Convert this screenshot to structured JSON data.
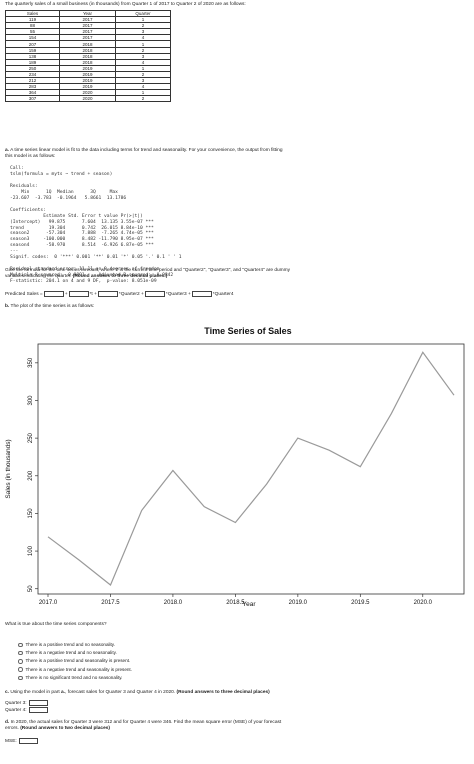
{
  "intro": "The quarterly sales of a small business (in thousands) from Quarter 1 of 2017 to Quarter 2 of 2020 are as follows:",
  "table": {
    "headers": [
      "Sales",
      "Year",
      "Quarter"
    ],
    "rows": [
      [
        "119",
        "2017",
        "1"
      ],
      [
        "88",
        "2017",
        "2"
      ],
      [
        "55",
        "2017",
        "3"
      ],
      [
        "154",
        "2017",
        "4"
      ],
      [
        "207",
        "2018",
        "1"
      ],
      [
        "159",
        "2018",
        "2"
      ],
      [
        "138",
        "2018",
        "3"
      ],
      [
        "189",
        "2018",
        "4"
      ],
      [
        "250",
        "2019",
        "1"
      ],
      [
        "234",
        "2019",
        "2"
      ],
      [
        "212",
        "2019",
        "3"
      ],
      [
        "283",
        "2019",
        "4"
      ],
      [
        "364",
        "2020",
        "1"
      ],
      [
        "307",
        "2020",
        "2"
      ]
    ]
  },
  "part_a": {
    "label": "a.",
    "text_line1": " A time series linear model is fit to the data including terms for trend and seasonality.  For your convenience, the output from fitting",
    "text_line2": "this model is as follows:",
    "r_output": "Call:\ntslm(formula = myts ~ trend + season)\n\nResiduals:\n    Min      1Q  Median      3Q     Max\n-23.607  -3.783  -0.1964   5.8661  13.1786\n\nCoefficients:\n            Estimate Std. Error t value Pr(>|t|)\n(Intercept)   99.875      7.604  13.135 3.55e-07 ***\ntrend         19.304      0.742  26.015 8.84e-10 ***\nseason2      -57.304      7.888  -7.265 4.74e-05 ***\nseason3     -100.000      8.482 -11.790 8.95e-07 ***\nseason4      -58.970      8.514  -6.926 6.87e-05 ***\n---\nSignif. codes:  0 '***' 0.001 '**' 0.01 '*' 0.05 '.' 0.1 ' ' 1\n\nResidual standard error: 11.11 on 9 degrees of freedom\nMultiple R-squared:  0.9891,    Adjusted R-squared:  0.9842\nF-statistic: 204.1 on 4 and 9 DF,  p-value: 8.051e-09",
    "instruction_line1": "Give the formula for the time series forecast, where 't' is the current time period and \"Quarter2\", \"Quarter3\", and \"Quarter4\" are dummy",
    "instruction_line2_prefix": "variables indicating the quarter. ",
    "instruction_line2_bold": "(Round answers to three decimal places.)",
    "formula": {
      "lhs": "Predicted Sales = ",
      "t1": " + ",
      "t2": "*t + ",
      "t3": "*Quarter2 + ",
      "t4": "*Quarter3 + ",
      "t5": "*Quarter4"
    }
  },
  "part_b": {
    "label": "b.",
    "text": " The plot of the time series is as follows:"
  },
  "chart_data": {
    "type": "line",
    "title": "Time Series of Sales",
    "xlabel": "Year",
    "ylabel": "Sales (in thousands)",
    "x": [
      2017.0,
      2017.25,
      2017.5,
      2017.75,
      2018.0,
      2018.25,
      2018.5,
      2018.75,
      2019.0,
      2019.25,
      2019.5,
      2019.75,
      2020.0,
      2020.25
    ],
    "series": [
      {
        "values": [
          119,
          88,
          55,
          154,
          207,
          159,
          138,
          189,
          250,
          234,
          212,
          283,
          364,
          307
        ]
      }
    ],
    "xlim": [
      2016.92,
      2020.33
    ],
    "ylim": [
      43,
      375
    ],
    "x_ticks": [
      "2017.0",
      "2017.5",
      "2018.0",
      "2018.5",
      "2019.0",
      "2019.5",
      "2020.0"
    ],
    "y_ticks": [
      "50",
      "100",
      "150",
      "200",
      "250",
      "300",
      "350"
    ],
    "grid": false,
    "line_color": "#9a9a9a"
  },
  "question_components": "What is true about the time series components?",
  "options": [
    "There is a positive trend and no seasonality.",
    "There is a negative trend and no seasonality.",
    "There is a positive trend and seasonality is present.",
    "There is a negative trend and seasonality is present.",
    "There is no significant trend and no seasonality."
  ],
  "part_c": {
    "label": "c.",
    "text": " Using the model in part ",
    "text_bold_a": "a.",
    "text_after": ", forecast sales for Quarter 3 and Quarter 4 in 2020. ",
    "text_bold": "(Round answers to three decimal places)",
    "q3_label": "Quarter 3:",
    "q4_label": "Quarter 4:"
  },
  "part_d": {
    "label": "d.",
    "text_line1": " In 2020, the actual sales for Quarter 3 were 312 and for Quarter 4 were 346.  Find the mean square error (MSE) of your forecast",
    "text_line2_prefix": "errors. ",
    "text_line2_bold": "(Round answers to two decimal places)",
    "mse_label": "MSE:"
  }
}
